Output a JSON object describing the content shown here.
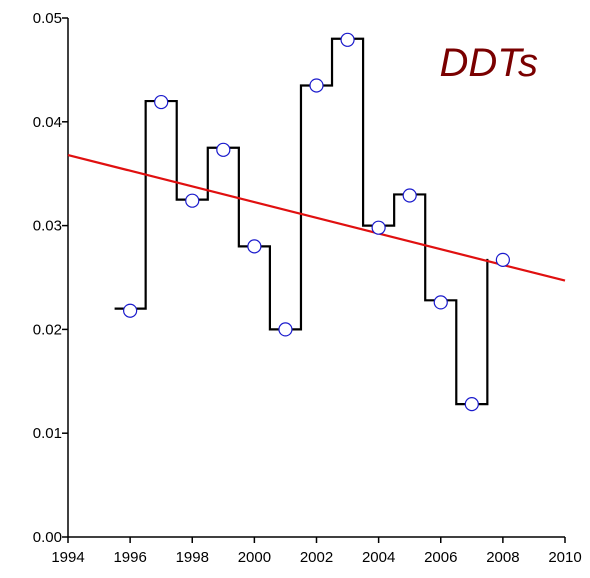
{
  "chart_data": {
    "type": "line",
    "title": "DDTs",
    "xlabel": "",
    "ylabel": "",
    "xlim": [
      1994,
      2010
    ],
    "ylim": [
      0.0,
      0.05
    ],
    "x_ticks": [
      "1994",
      "1996",
      "1998",
      "2000",
      "2002",
      "2004",
      "2006",
      "2008",
      "2010"
    ],
    "y_ticks": [
      "0.00",
      "0.01",
      "0.02",
      "0.03",
      "0.04",
      "0.05"
    ],
    "grid": false,
    "legend": "none",
    "series": [
      {
        "kind": "points",
        "marker": "open-circle",
        "color": "#1a1acc",
        "points": [
          {
            "x": 1996,
            "y": 0.0218
          },
          {
            "x": 1997,
            "y": 0.0419
          },
          {
            "x": 1998,
            "y": 0.0324
          },
          {
            "x": 1999,
            "y": 0.0373
          },
          {
            "x": 2000,
            "y": 0.028
          },
          {
            "x": 2001,
            "y": 0.02
          },
          {
            "x": 2002,
            "y": 0.0435
          },
          {
            "x": 2003,
            "y": 0.0479
          },
          {
            "x": 2004,
            "y": 0.0298
          },
          {
            "x": 2005,
            "y": 0.0329
          },
          {
            "x": 2006,
            "y": 0.0226
          },
          {
            "x": 2007,
            "y": 0.0128
          },
          {
            "x": 2008,
            "y": 0.0267
          }
        ]
      },
      {
        "kind": "step",
        "color": "#000000",
        "segments": [
          {
            "x0": 1995.5,
            "x1": 1996.5,
            "y": 0.022
          },
          {
            "x0": 1996.5,
            "x1": 1997.5,
            "y": 0.042
          },
          {
            "x0": 1997.5,
            "x1": 1998.5,
            "y": 0.0325
          },
          {
            "x0": 1998.5,
            "x1": 1999.5,
            "y": 0.0375
          },
          {
            "x0": 1999.5,
            "x1": 2000.5,
            "y": 0.028
          },
          {
            "x0": 2000.5,
            "x1": 2001.5,
            "y": 0.02
          },
          {
            "x0": 2001.5,
            "x1": 2002.5,
            "y": 0.0435
          },
          {
            "x0": 2002.5,
            "x1": 2003.5,
            "y": 0.048
          },
          {
            "x0": 2003.5,
            "x1": 2004.5,
            "y": 0.03
          },
          {
            "x0": 2004.5,
            "x1": 2005.5,
            "y": 0.033
          },
          {
            "x0": 2005.5,
            "x1": 2006.5,
            "y": 0.0228
          },
          {
            "x0": 2006.5,
            "x1": 2007.5,
            "y": 0.0128
          }
        ],
        "end_rise": {
          "x": 2007.5,
          "y": 0.0268
        }
      },
      {
        "kind": "trend",
        "color": "#e01010",
        "from": {
          "x": 1994,
          "y": 0.0368
        },
        "to": {
          "x": 2010,
          "y": 0.0247
        }
      }
    ]
  }
}
